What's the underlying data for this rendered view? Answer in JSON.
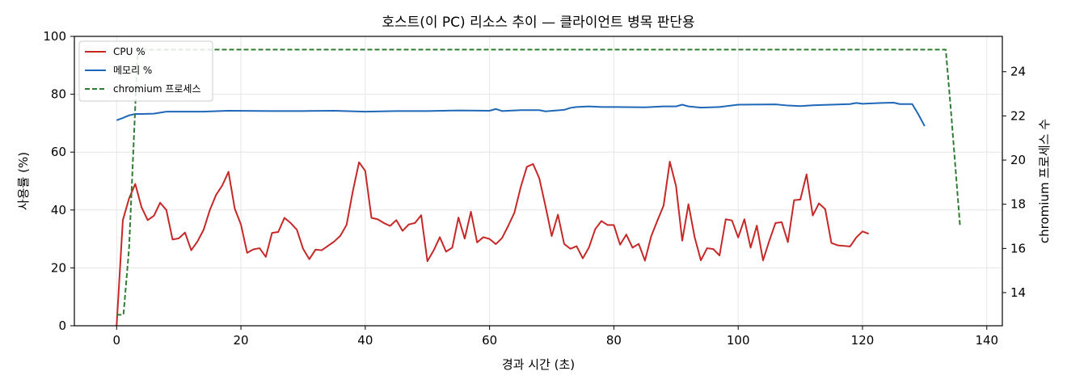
{
  "chart_data": {
    "type": "line",
    "title": "호스트(이 PC) 리소스 추이 — 클라이언트 병목 판단용",
    "xlabel": "경과 시간 (초)",
    "ylabel": "사용률 (%)",
    "y2label": "chromium 프로세스 수",
    "xlim": [
      -6.8,
      142.5
    ],
    "ylim": [
      0,
      100
    ],
    "y2lim": [
      12.5,
      25.6
    ],
    "xticks": [
      0,
      20,
      40,
      60,
      80,
      100,
      120,
      140
    ],
    "yticks": [
      0,
      20,
      40,
      60,
      80,
      100
    ],
    "y2ticks": [
      14,
      16,
      18,
      20,
      22,
      24
    ],
    "grid": true,
    "legend_position": "upper-left",
    "series": [
      {
        "name": "CPU %",
        "axis": "left",
        "color": "#c62828",
        "style": "solid",
        "points": [
          [
            0,
            0
          ],
          [
            1,
            36.5
          ],
          [
            2,
            44
          ],
          [
            3,
            49
          ],
          [
            4,
            41
          ],
          [
            5,
            36.5
          ],
          [
            6,
            38
          ],
          [
            7,
            42.5
          ],
          [
            8,
            40
          ],
          [
            9,
            29.8
          ],
          [
            10,
            30.2
          ],
          [
            11,
            32.2
          ],
          [
            12,
            26.1
          ],
          [
            13,
            29.1
          ],
          [
            14,
            33.2
          ],
          [
            15,
            40
          ],
          [
            16,
            45.2
          ],
          [
            17,
            48.5
          ],
          [
            18,
            53.2
          ],
          [
            19,
            40.5
          ],
          [
            20,
            35
          ],
          [
            21,
            25.2
          ],
          [
            22,
            26.4
          ],
          [
            23,
            26.8
          ],
          [
            24,
            23.8
          ],
          [
            25,
            32.1
          ],
          [
            26,
            32.4
          ],
          [
            27,
            37.3
          ],
          [
            28,
            35.5
          ],
          [
            29,
            33.2
          ],
          [
            30,
            26.6
          ],
          [
            31,
            23
          ],
          [
            32,
            26.3
          ],
          [
            33,
            26.1
          ],
          [
            34,
            27.6
          ],
          [
            35,
            29.1
          ],
          [
            36,
            31.1
          ],
          [
            37,
            34.9
          ],
          [
            38,
            46.5
          ],
          [
            39,
            56.5
          ],
          [
            40,
            53.5
          ],
          [
            41,
            37.3
          ],
          [
            42,
            36.8
          ],
          [
            43,
            35.5
          ],
          [
            44,
            34.5
          ],
          [
            45,
            36.5
          ],
          [
            46,
            32.8
          ],
          [
            47,
            35
          ],
          [
            48,
            35.5
          ],
          [
            49,
            38.2
          ],
          [
            50,
            22.3
          ],
          [
            51,
            26
          ],
          [
            52,
            30.6
          ],
          [
            53,
            25.6
          ],
          [
            54,
            27
          ],
          [
            55,
            37.4
          ],
          [
            56,
            30.1
          ],
          [
            57,
            39.4
          ],
          [
            58,
            28.8
          ],
          [
            59,
            30.6
          ],
          [
            60,
            30
          ],
          [
            61,
            28.2
          ],
          [
            62,
            30.3
          ],
          [
            63,
            34.5
          ],
          [
            64,
            39.1
          ],
          [
            65,
            47.8
          ],
          [
            66,
            54.9
          ],
          [
            67,
            55.9
          ],
          [
            68,
            51
          ],
          [
            69,
            41.3
          ],
          [
            70,
            31
          ],
          [
            71,
            38.4
          ],
          [
            72,
            28.3
          ],
          [
            73,
            26.6
          ],
          [
            74,
            27.5
          ],
          [
            75,
            23.3
          ],
          [
            76,
            27.1
          ],
          [
            77,
            33.4
          ],
          [
            78,
            36.2
          ],
          [
            79,
            34.8
          ],
          [
            80,
            34.8
          ],
          [
            81,
            28
          ],
          [
            82,
            31.5
          ],
          [
            83,
            27
          ],
          [
            84,
            28.3
          ],
          [
            85,
            22.5
          ],
          [
            86,
            30.9
          ],
          [
            87,
            36.3
          ],
          [
            88,
            41.5
          ],
          [
            89,
            56.7
          ],
          [
            90,
            48.3
          ],
          [
            91,
            29.4
          ],
          [
            92,
            42
          ],
          [
            93,
            30.6
          ],
          [
            94,
            22.6
          ],
          [
            95,
            26.8
          ],
          [
            96,
            26.5
          ],
          [
            97,
            24.3
          ],
          [
            98,
            36.8
          ],
          [
            99,
            36.4
          ],
          [
            100,
            30.5
          ],
          [
            101,
            36.8
          ],
          [
            102,
            27
          ],
          [
            103,
            34.6
          ],
          [
            104,
            22.6
          ],
          [
            105,
            29.3
          ],
          [
            106,
            35.5
          ],
          [
            107,
            35.8
          ],
          [
            108,
            28.9
          ],
          [
            109,
            43.4
          ],
          [
            110,
            43.6
          ],
          [
            111,
            52.3
          ],
          [
            112,
            38.1
          ],
          [
            113,
            42.3
          ],
          [
            114,
            40.3
          ],
          [
            115,
            28.6
          ],
          [
            116,
            27.8
          ],
          [
            117,
            27.6
          ],
          [
            118,
            27.4
          ],
          [
            119,
            30.5
          ],
          [
            120,
            32.6
          ],
          [
            121,
            31.8
          ]
        ]
      },
      {
        "name": "메모리 %",
        "axis": "left",
        "color": "#1f68b8",
        "style": "solid",
        "points": [
          [
            0,
            71
          ],
          [
            1,
            71.8
          ],
          [
            2,
            72.7
          ],
          [
            3,
            73.2
          ],
          [
            4,
            73.2
          ],
          [
            6,
            73.3
          ],
          [
            8,
            74
          ],
          [
            10,
            74
          ],
          [
            14,
            74
          ],
          [
            18,
            74.3
          ],
          [
            25,
            74.2
          ],
          [
            30,
            74.2
          ],
          [
            35,
            74.3
          ],
          [
            40,
            74
          ],
          [
            45,
            74.2
          ],
          [
            50,
            74.2
          ],
          [
            55,
            74.4
          ],
          [
            60,
            74.3
          ],
          [
            61,
            74.9
          ],
          [
            62,
            74.2
          ],
          [
            65,
            74.5
          ],
          [
            68,
            74.5
          ],
          [
            69,
            74.1
          ],
          [
            72,
            74.6
          ],
          [
            73,
            75.3
          ],
          [
            74,
            75.6
          ],
          [
            76,
            75.8
          ],
          [
            78,
            75.6
          ],
          [
            80,
            75.6
          ],
          [
            85,
            75.5
          ],
          [
            88,
            75.8
          ],
          [
            90,
            75.8
          ],
          [
            91,
            76.4
          ],
          [
            92,
            75.8
          ],
          [
            94,
            75.4
          ],
          [
            97,
            75.6
          ],
          [
            100,
            76.4
          ],
          [
            106,
            76.5
          ],
          [
            108,
            76.1
          ],
          [
            110,
            75.9
          ],
          [
            112,
            76.2
          ],
          [
            115,
            76.4
          ],
          [
            118,
            76.6
          ],
          [
            119,
            77
          ],
          [
            120,
            76.7
          ],
          [
            123,
            77
          ],
          [
            125,
            77.1
          ],
          [
            126,
            76.6
          ],
          [
            128,
            76.6
          ],
          [
            129,
            73
          ],
          [
            130,
            69
          ]
        ]
      },
      {
        "name": "chromium 프로세스",
        "axis": "right",
        "color": "#2e7d32",
        "style": "dashed",
        "points": [
          [
            0,
            13
          ],
          [
            1.1,
            13
          ],
          [
            2,
            16
          ],
          [
            3.4,
            25
          ],
          [
            133.4,
            25
          ],
          [
            134.3,
            22
          ],
          [
            135.7,
            17
          ]
        ]
      }
    ]
  }
}
